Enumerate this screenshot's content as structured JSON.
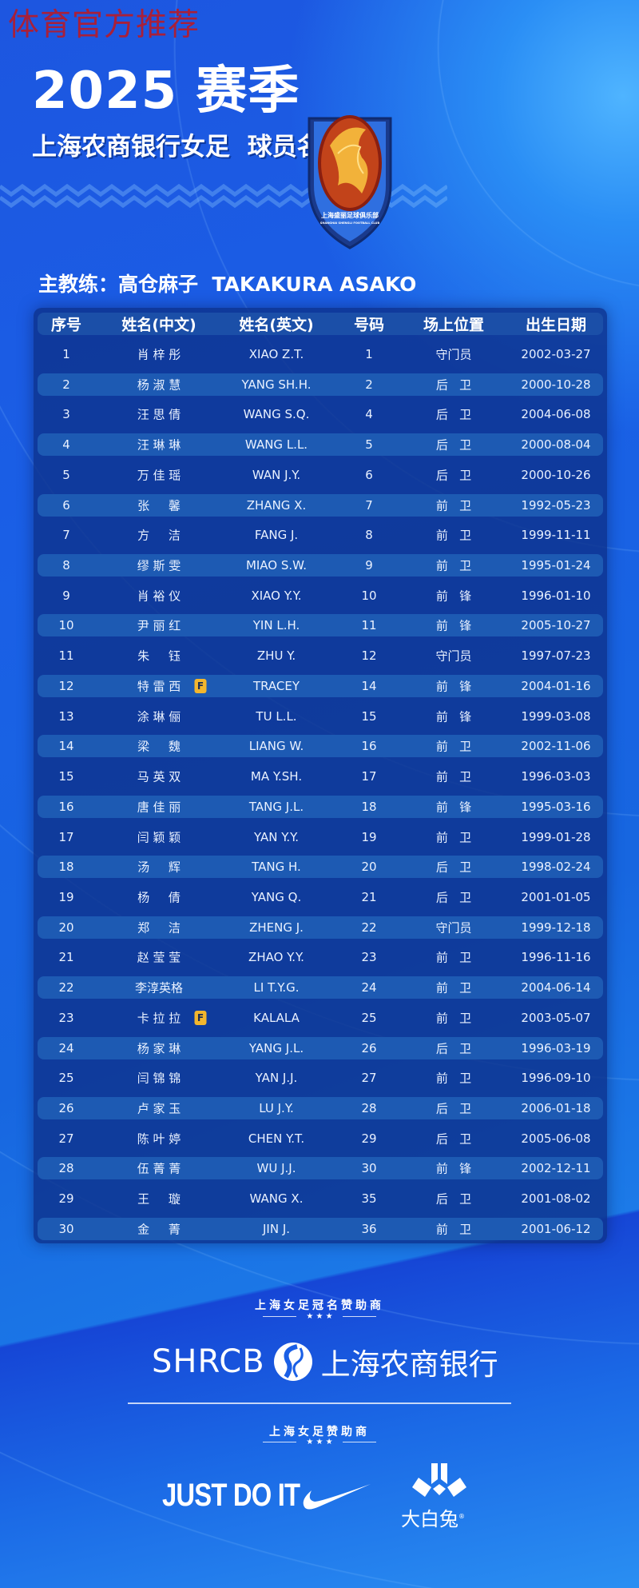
{
  "watermark": "体育官方推荐",
  "header": {
    "title": "2025 赛季",
    "subtitle": "上海农商银行女足  球员名单",
    "badge_text": "上海盛丽足球俱乐部",
    "badge_text_en": "SHANGHAI SHENGLI FOOTBALL CLUB"
  },
  "coach": "主教练：高仓麻子  TAKAKURA ASAKO",
  "table": {
    "columns": [
      "序号",
      "姓名(中文)",
      "姓名(英文)",
      "号码",
      "场上位置",
      "出生日期"
    ],
    "foreign_badge": "F",
    "rows": [
      [
        "1",
        "肖 梓 彤",
        "XIAO Z.T.",
        "1",
        "守门员",
        "2002-03-27",
        false
      ],
      [
        "2",
        "杨 淑 慧",
        "YANG SH.H.",
        "2",
        "后   卫",
        "2000-10-28",
        false
      ],
      [
        "3",
        "汪 思 倩",
        "WANG S.Q.",
        "4",
        "后   卫",
        "2004-06-08",
        false
      ],
      [
        "4",
        "汪 琳 琳",
        "WANG L.L.",
        "5",
        "后   卫",
        "2000-08-04",
        false
      ],
      [
        "5",
        "万 佳 瑶",
        "WAN J.Y.",
        "6",
        "后   卫",
        "2000-10-26",
        false
      ],
      [
        "6",
        "张     馨",
        "ZHANG X.",
        "7",
        "前   卫",
        "1992-05-23",
        false
      ],
      [
        "7",
        "方     洁",
        "FANG J.",
        "8",
        "前   卫",
        "1999-11-11",
        false
      ],
      [
        "8",
        "缪 斯 雯",
        "MIAO S.W.",
        "9",
        "前   卫",
        "1995-01-24",
        false
      ],
      [
        "9",
        "肖 裕 仪",
        "XIAO Y.Y.",
        "10",
        "前   锋",
        "1996-01-10",
        false
      ],
      [
        "10",
        "尹 丽 红",
        "YIN L.H.",
        "11",
        "前   锋",
        "2005-10-27",
        false
      ],
      [
        "11",
        "朱     钰",
        "ZHU Y.",
        "12",
        "守门员",
        "1997-07-23",
        false
      ],
      [
        "12",
        "特 雷 西",
        "TRACEY",
        "14",
        "前   锋",
        "2004-01-16",
        true
      ],
      [
        "13",
        "涂 琳 俪",
        "TU L.L.",
        "15",
        "前   锋",
        "1999-03-08",
        false
      ],
      [
        "14",
        "梁     魏",
        "LIANG W.",
        "16",
        "前   卫",
        "2002-11-06",
        false
      ],
      [
        "15",
        "马 英 双",
        "MA Y.SH.",
        "17",
        "前   卫",
        "1996-03-03",
        false
      ],
      [
        "16",
        "唐 佳 丽",
        "TANG J.L.",
        "18",
        "前   锋",
        "1995-03-16",
        false
      ],
      [
        "17",
        "闫 颖 颖",
        "YAN Y.Y.",
        "19",
        "前   卫",
        "1999-01-28",
        false
      ],
      [
        "18",
        "汤     辉",
        "TANG H.",
        "20",
        "后   卫",
        "1998-02-24",
        false
      ],
      [
        "19",
        "杨     倩",
        "YANG Q.",
        "21",
        "后   卫",
        "2001-01-05",
        false
      ],
      [
        "20",
        "郑     洁",
        "ZHENG J.",
        "22",
        "守门员",
        "1999-12-18",
        false
      ],
      [
        "21",
        "赵 莹 莹",
        "ZHAO Y.Y.",
        "23",
        "前   卫",
        "1996-11-16",
        false
      ],
      [
        "22",
        "李淳英格",
        "LI T.Y.G.",
        "24",
        "前   卫",
        "2004-06-14",
        false
      ],
      [
        "23",
        "卡 拉 拉",
        "KALALA",
        "25",
        "前   卫",
        "2003-05-07",
        true
      ],
      [
        "24",
        "杨 家 琳",
        "YANG J.L.",
        "26",
        "后   卫",
        "1996-03-19",
        false
      ],
      [
        "25",
        "闫 锦 锦",
        "YAN J.J.",
        "27",
        "前   卫",
        "1996-09-10",
        false
      ],
      [
        "26",
        "卢 家 玉",
        "LU J.Y.",
        "28",
        "后   卫",
        "2006-01-18",
        false
      ],
      [
        "27",
        "陈 叶 婷",
        "CHEN Y.T.",
        "29",
        "后   卫",
        "2005-06-08",
        false
      ],
      [
        "28",
        "伍 菁 菁",
        "WU J.J.",
        "30",
        "前   锋",
        "2002-12-11",
        false
      ],
      [
        "29",
        "王     璇",
        "WANG X.",
        "35",
        "后   卫",
        "2001-08-02",
        false
      ],
      [
        "30",
        "金     菁",
        "JIN J.",
        "36",
        "前   卫",
        "2001-06-12",
        false
      ]
    ]
  },
  "sponsors": {
    "title_sponsor_label": "上海女足冠名赞助商",
    "stars": "★ ★ ★",
    "title_sponsor_en": "SHRCB",
    "title_sponsor_cn": "上海农商银行",
    "sponsor_label": "上海女足赞助商",
    "nike_slogan": "JUST DO IT",
    "dabaitu": "大白兔",
    "registered": "®"
  },
  "colors": {
    "background": "#1a5fe6",
    "panel": "#0e328c",
    "stripe": "#1d5ab3",
    "foreign_badge": "#f3b62d",
    "watermark": "#a8203a"
  }
}
